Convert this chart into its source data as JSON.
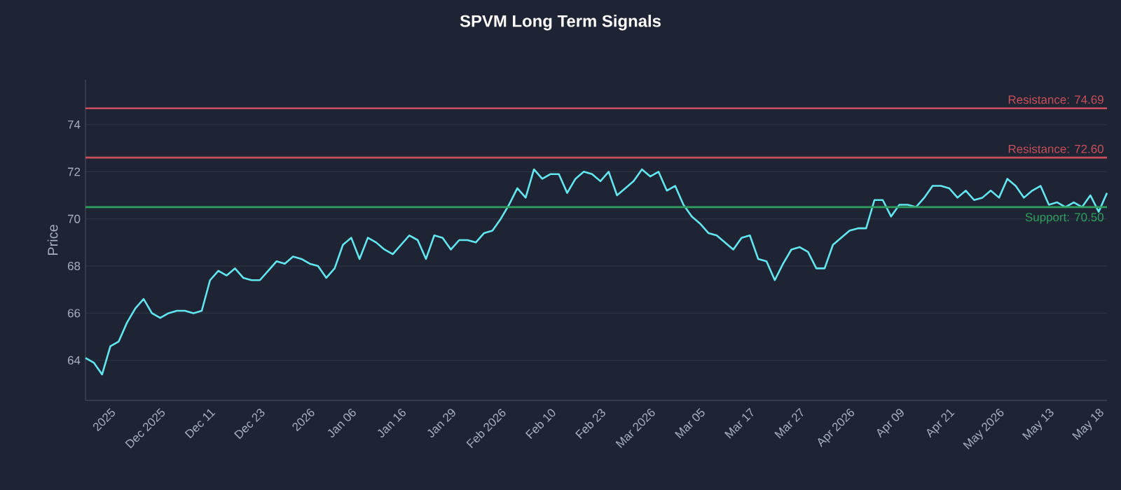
{
  "chart_data": {
    "type": "line",
    "title": "SPVM Long Term Signals",
    "ylabel": "Price",
    "ylim": [
      62.3,
      75.9
    ],
    "yticks": [
      64,
      66,
      68,
      70,
      72,
      74
    ],
    "grid": "y",
    "categories": [
      null,
      null,
      null,
      "2025",
      null,
      null,
      null,
      null,
      null,
      "Dec 2025",
      null,
      null,
      null,
      null,
      null,
      "Dec 11",
      null,
      null,
      null,
      null,
      null,
      "Dec 23",
      null,
      null,
      null,
      null,
      null,
      "2026",
      null,
      null,
      null,
      null,
      "Jan 06",
      null,
      null,
      null,
      null,
      null,
      "Jan 16",
      null,
      null,
      null,
      null,
      null,
      "Jan 29",
      null,
      null,
      null,
      null,
      null,
      "Feb 2026",
      null,
      null,
      null,
      null,
      null,
      "Feb 10",
      null,
      null,
      null,
      null,
      null,
      "Feb 23",
      null,
      null,
      null,
      null,
      null,
      "Mar 2026",
      null,
      null,
      null,
      null,
      null,
      "Mar 05",
      null,
      null,
      null,
      null,
      null,
      "Mar 17",
      null,
      null,
      null,
      null,
      null,
      "Mar 27",
      null,
      null,
      null,
      null,
      null,
      "Apr 2026",
      null,
      null,
      null,
      null,
      null,
      "Apr 09",
      null,
      null,
      null,
      null,
      null,
      "Apr 21",
      null,
      null,
      null,
      null,
      null,
      "May 2026",
      null,
      null,
      null,
      null,
      null,
      "May 13",
      null,
      null,
      null,
      null,
      null,
      "May 18",
      null
    ],
    "ref_lines": [
      {
        "axis": "y",
        "value": 74.69,
        "label": "Resistance: 74.69",
        "color": "#c9505c"
      },
      {
        "axis": "y",
        "value": 72.6,
        "label": "Resistance: 72.60",
        "color": "#c9505c"
      },
      {
        "axis": "y",
        "value": 70.5,
        "label": "Support: 70.50",
        "color": "#2fa05e"
      }
    ],
    "series": [
      {
        "color": "#62e6ef",
        "values": [
          64.1,
          63.9,
          63.4,
          64.6,
          64.8,
          65.6,
          66.2,
          66.6,
          66.0,
          65.8,
          66.0,
          66.1,
          66.1,
          66.0,
          66.1,
          67.4,
          67.8,
          67.6,
          67.9,
          67.5,
          67.4,
          67.4,
          67.8,
          68.2,
          68.1,
          68.4,
          68.3,
          68.1,
          68.0,
          67.5,
          67.9,
          68.9,
          69.2,
          68.3,
          69.2,
          69.0,
          68.7,
          68.5,
          68.9,
          69.3,
          69.1,
          68.3,
          69.3,
          69.2,
          68.7,
          69.1,
          69.1,
          69.0,
          69.4,
          69.5,
          70.0,
          70.6,
          71.3,
          70.9,
          72.1,
          71.7,
          71.9,
          71.9,
          71.1,
          71.7,
          72.0,
          71.9,
          71.6,
          72.0,
          71.0,
          71.3,
          71.6,
          72.1,
          71.8,
          72.0,
          71.2,
          71.4,
          70.6,
          70.1,
          69.8,
          69.4,
          69.3,
          69.0,
          68.7,
          69.2,
          69.3,
          68.3,
          68.2,
          67.4,
          68.1,
          68.7,
          68.8,
          68.6,
          67.9,
          67.9,
          68.9,
          69.2,
          69.5,
          69.6,
          69.6,
          70.8,
          70.8,
          70.1,
          70.6,
          70.6,
          70.5,
          70.9,
          71.4,
          71.4,
          71.3,
          70.9,
          71.2,
          70.8,
          70.9,
          71.2,
          70.9,
          71.7,
          71.4,
          70.9,
          71.2,
          71.4,
          70.6,
          70.7,
          70.5,
          70.7,
          70.5,
          71.0,
          70.3,
          71.1
        ]
      }
    ]
  }
}
